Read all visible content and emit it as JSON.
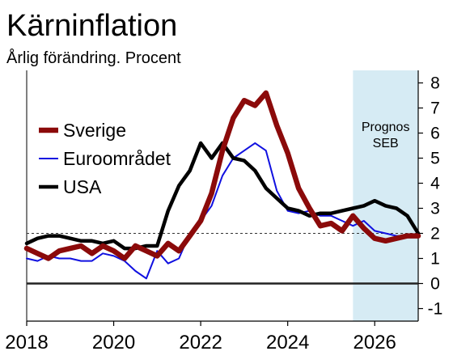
{
  "chart_data": {
    "type": "line",
    "title": "Kärninflation",
    "subtitle": "Årlig förändring. Procent",
    "x_ticks": [
      "2018",
      "2020",
      "2022",
      "2024",
      "2026"
    ],
    "y_ticks": [
      "-1",
      "0",
      "1",
      "2",
      "3",
      "4",
      "5",
      "6",
      "7",
      "8"
    ],
    "xlim": [
      2018.0,
      2027.0
    ],
    "ylim": [
      -1.5,
      8.5
    ],
    "grid": false,
    "legend_position": "left",
    "forecast_band": {
      "label_line1": "Prognos",
      "label_line2": "SEB",
      "x_start": 2025.5,
      "x_end": 2027.0,
      "color": "#d6ebf4"
    },
    "reference_lines": [
      {
        "y": 0,
        "style": "solid",
        "color": "#222222"
      },
      {
        "y": 2,
        "style": "dashed",
        "color": "#333333"
      }
    ],
    "series": [
      {
        "name": "Sverige",
        "color": "#8b0a0a",
        "width": 6.5,
        "x": [
          2018.0,
          2018.25,
          2018.5,
          2018.75,
          2019.0,
          2019.25,
          2019.5,
          2019.75,
          2020.0,
          2020.25,
          2020.5,
          2020.75,
          2021.0,
          2021.25,
          2021.5,
          2021.75,
          2022.0,
          2022.25,
          2022.5,
          2022.75,
          2023.0,
          2023.25,
          2023.5,
          2023.75,
          2024.0,
          2024.25,
          2024.5,
          2024.75,
          2025.0,
          2025.25,
          2025.5,
          2025.75,
          2026.0,
          2026.25,
          2026.5,
          2026.75,
          2027.0
        ],
        "y": [
          1.4,
          1.2,
          1.0,
          1.3,
          1.4,
          1.5,
          1.2,
          1.5,
          1.3,
          1.0,
          1.5,
          1.3,
          1.1,
          1.6,
          1.3,
          1.9,
          2.5,
          3.6,
          5.3,
          6.6,
          7.3,
          7.1,
          7.6,
          6.3,
          5.2,
          3.8,
          3.0,
          2.3,
          2.4,
          2.1,
          2.7,
          2.2,
          1.8,
          1.7,
          1.8,
          1.9,
          1.9
        ]
      },
      {
        "name": "Euroområdet",
        "color": "#1010e0",
        "width": 2,
        "x": [
          2018.0,
          2018.25,
          2018.5,
          2018.75,
          2019.0,
          2019.25,
          2019.5,
          2019.75,
          2020.0,
          2020.25,
          2020.5,
          2020.75,
          2021.0,
          2021.25,
          2021.5,
          2021.75,
          2022.0,
          2022.25,
          2022.5,
          2022.75,
          2023.0,
          2023.25,
          2023.5,
          2023.75,
          2024.0,
          2024.25,
          2024.5,
          2024.75,
          2025.0,
          2025.25,
          2025.5,
          2025.75,
          2026.0,
          2026.25,
          2026.5,
          2026.75,
          2027.0
        ],
        "y": [
          1.0,
          0.9,
          1.1,
          1.0,
          1.0,
          0.9,
          0.9,
          1.2,
          1.1,
          0.9,
          0.5,
          0.2,
          1.3,
          0.8,
          1.0,
          2.0,
          2.5,
          3.1,
          4.3,
          5.0,
          5.3,
          5.6,
          5.3,
          3.7,
          2.9,
          2.8,
          2.9,
          2.7,
          2.7,
          2.5,
          2.3,
          2.5,
          2.1,
          2.0,
          1.9,
          1.9,
          1.9
        ]
      },
      {
        "name": "USA",
        "color": "#000000",
        "width": 4.5,
        "x": [
          2018.0,
          2018.25,
          2018.5,
          2018.75,
          2019.0,
          2019.25,
          2019.5,
          2019.75,
          2020.0,
          2020.25,
          2020.5,
          2020.75,
          2021.0,
          2021.25,
          2021.5,
          2021.75,
          2022.0,
          2022.25,
          2022.5,
          2022.75,
          2023.0,
          2023.25,
          2023.5,
          2023.75,
          2024.0,
          2024.25,
          2024.5,
          2024.75,
          2025.0,
          2025.25,
          2025.5,
          2025.75,
          2026.0,
          2026.25,
          2026.5,
          2026.75,
          2027.0
        ],
        "y": [
          1.6,
          1.8,
          1.9,
          1.9,
          1.8,
          1.7,
          1.7,
          1.6,
          1.7,
          1.4,
          1.4,
          1.5,
          1.5,
          2.9,
          3.9,
          4.5,
          5.6,
          5.0,
          5.6,
          5.0,
          4.9,
          4.5,
          3.8,
          3.4,
          3.0,
          2.9,
          2.7,
          2.8,
          2.8,
          2.9,
          3.0,
          3.1,
          3.3,
          3.1,
          3.0,
          2.7,
          2.0
        ]
      }
    ]
  }
}
